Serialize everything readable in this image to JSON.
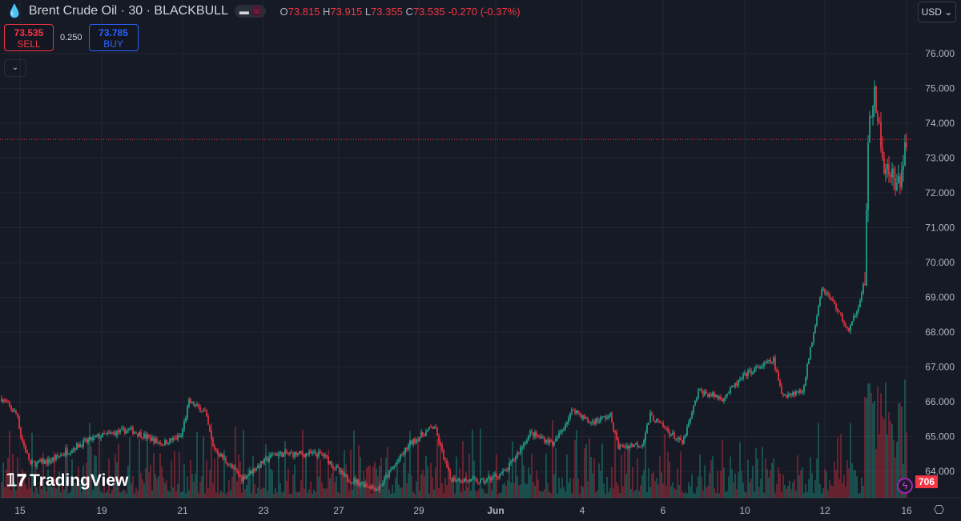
{
  "header": {
    "symbol": "Brent Crude Oil · 30 · BLACKBULL",
    "open_label": "O",
    "open": "73.815",
    "high_label": "H",
    "high": "73.915",
    "low_label": "L",
    "low": "73.355",
    "close_label": "C",
    "close": "73.535",
    "change": "-0.270 (-0.37%)"
  },
  "trade": {
    "sell_price": "73.535",
    "sell_label": "SELL",
    "spread": "0.250",
    "buy_price": "73.785",
    "buy_label": "BUY"
  },
  "currency": "USD",
  "brand": "TradingView",
  "volume_label": "706",
  "colors": {
    "up": "#22ab94",
    "down": "#f23645",
    "bg": "#161a25",
    "grid": "#232632"
  },
  "chart_data": {
    "type": "candlestick",
    "interval": "30",
    "ylim": [
      63.5,
      76.3
    ],
    "y_ticks": [
      "76.000",
      "75.000",
      "74.000",
      "73.000",
      "72.000",
      "71.000",
      "70.000",
      "69.000",
      "68.000",
      "67.000",
      "66.000",
      "65.000",
      "64.000"
    ],
    "x_ticks": [
      "15",
      "19",
      "21",
      "23",
      "27",
      "29",
      "Jun",
      "4",
      "6",
      "10",
      "12",
      "16"
    ],
    "current_price": 73.535,
    "price_path": [
      [
        0,
        66.1
      ],
      [
        10,
        65.6
      ],
      [
        12,
        65.0
      ],
      [
        18,
        64.2
      ],
      [
        30,
        64.3
      ],
      [
        50,
        64.8
      ],
      [
        60,
        65.0
      ],
      [
        80,
        65.2
      ],
      [
        100,
        64.8
      ],
      [
        112,
        65.0
      ],
      [
        117,
        66.0
      ],
      [
        127,
        65.7
      ],
      [
        132,
        64.7
      ],
      [
        150,
        63.8
      ],
      [
        170,
        64.5
      ],
      [
        200,
        64.5
      ],
      [
        215,
        63.8
      ],
      [
        235,
        63.5
      ],
      [
        255,
        64.8
      ],
      [
        270,
        65.3
      ],
      [
        280,
        63.8
      ],
      [
        300,
        63.7
      ],
      [
        315,
        64.0
      ],
      [
        330,
        65.1
      ],
      [
        345,
        64.8
      ],
      [
        357,
        65.8
      ],
      [
        367,
        65.4
      ],
      [
        380,
        65.6
      ],
      [
        385,
        64.7
      ],
      [
        400,
        64.8
      ],
      [
        405,
        65.6
      ],
      [
        425,
        64.8
      ],
      [
        430,
        65.5
      ],
      [
        435,
        66.3
      ],
      [
        450,
        66.1
      ],
      [
        465,
        66.8
      ],
      [
        482,
        67.2
      ],
      [
        487,
        66.2
      ],
      [
        500,
        66.3
      ],
      [
        505,
        67.5
      ],
      [
        512,
        69.3
      ],
      [
        520,
        68.8
      ],
      [
        529,
        68.0
      ],
      [
        535,
        68.8
      ],
      [
        539,
        69.5
      ],
      [
        541,
        73.5
      ],
      [
        545,
        75.0
      ],
      [
        550,
        73.0
      ],
      [
        555,
        72.5
      ],
      [
        560,
        72.2
      ],
      [
        565,
        73.5
      ]
    ]
  }
}
